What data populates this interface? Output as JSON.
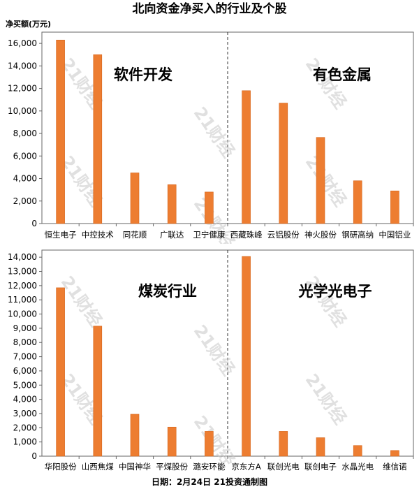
{
  "title": "北向资金净买入的行业及个股",
  "unit_label": "净买额(万元)",
  "footer": "日期：2月24日 21投资通制图",
  "watermark": "21财经",
  "colors": {
    "bar": "#ED7D31",
    "bar_edge": "#D4641A",
    "axis": "#666666",
    "grid": "#cfcfcf",
    "divider": "#333333",
    "watermark": "#c8c8c8"
  },
  "chart_data": [
    {
      "type": "bar",
      "groups": [
        "软件开发",
        "有色金属"
      ],
      "categories": [
        "恒生电子",
        "中控技术",
        "同花顺",
        "广联达",
        "卫宁健康",
        "西藏珠峰",
        "云铝股份",
        "神火股份",
        "钢研高纳",
        "中国铝业"
      ],
      "values": [
        16300,
        15000,
        4500,
        3450,
        2800,
        11800,
        10700,
        7650,
        3800,
        2900
      ],
      "yticks": [
        "0",
        "2,000",
        "4,000",
        "6,000",
        "8,000",
        "10,000",
        "12,000",
        "14,000",
        "16,000"
      ],
      "ylim": [
        0,
        17000
      ],
      "ylabel": "净买额(万元)"
    },
    {
      "type": "bar",
      "groups": [
        "煤炭行业",
        "光学光电子"
      ],
      "categories": [
        "华阳股份",
        "山西焦煤",
        "中国神华",
        "平煤股份",
        "潞安环能",
        "京东方A",
        "联创光电",
        "联创电子",
        "水晶光电",
        "维信诺"
      ],
      "values": [
        11850,
        9150,
        2950,
        2050,
        1750,
        14050,
        1750,
        1300,
        750,
        400
      ],
      "yticks": [
        "0",
        "1,000",
        "2,000",
        "3,000",
        "4,000",
        "5,000",
        "6,000",
        "7,000",
        "8,000",
        "9,000",
        "10,000",
        "11,000",
        "12,000",
        "13,000",
        "14,000"
      ],
      "ylim": [
        0,
        14500
      ],
      "ylabel": "净买额(万元)"
    }
  ]
}
